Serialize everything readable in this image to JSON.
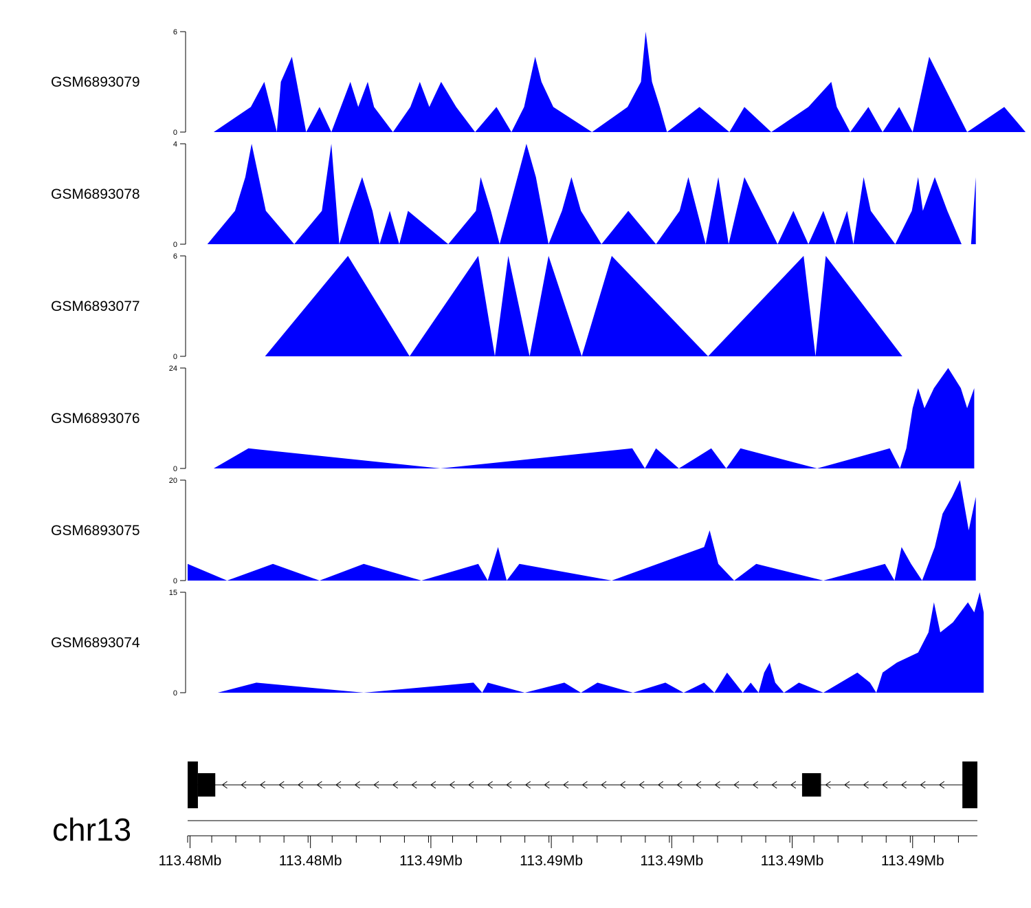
{
  "chart_data": {
    "type": "area",
    "fill_color": "#0000ff",
    "gene_color": "#000000",
    "chromosome": "chr13",
    "x_range": [
      0,
      1000
    ],
    "x_tick_labels": [
      "113.48Mb",
      "113.48Mb",
      "113.49Mb",
      "113.49Mb",
      "113.49Mb",
      "113.49Mb",
      "113.49Mb"
    ],
    "tracks": [
      {
        "name": "GSM6893079",
        "ylim": [
          0,
          6
        ],
        "y_tick_labels": [
          "0",
          "6"
        ],
        "points": [
          [
            33,
            0
          ],
          [
            80,
            1.5
          ],
          [
            97,
            3
          ],
          [
            113,
            0
          ],
          [
            118,
            3
          ],
          [
            132,
            4.5
          ],
          [
            150,
            0
          ],
          [
            167,
            1.5
          ],
          [
            182,
            0
          ],
          [
            206,
            3
          ],
          [
            216,
            1.5
          ],
          [
            228,
            3
          ],
          [
            236,
            1.5
          ],
          [
            260,
            0
          ],
          [
            282,
            1.5
          ],
          [
            294,
            3
          ],
          [
            306,
            1.5
          ],
          [
            321,
            3
          ],
          [
            340,
            1.5
          ],
          [
            364,
            0
          ],
          [
            391,
            1.5
          ],
          [
            410,
            0
          ],
          [
            426,
            1.5
          ],
          [
            440,
            4.5
          ],
          [
            448,
            3
          ],
          [
            463,
            1.5
          ],
          [
            512,
            0
          ],
          [
            557,
            1.5
          ],
          [
            574,
            3
          ],
          [
            580,
            6
          ],
          [
            588,
            3
          ],
          [
            598,
            1.5
          ],
          [
            607,
            0
          ],
          [
            648,
            1.5
          ],
          [
            686,
            0
          ],
          [
            705,
            1.5
          ],
          [
            739,
            0
          ],
          [
            786,
            1.5
          ],
          [
            815,
            3
          ],
          [
            822,
            1.5
          ],
          [
            839,
            0
          ],
          [
            862,
            1.5
          ],
          [
            880,
            0
          ],
          [
            901,
            1.5
          ],
          [
            918,
            0
          ],
          [
            939,
            4.5
          ],
          [
            987,
            0
          ],
          [
            1034,
            1.5
          ],
          [
            1061,
            0
          ]
        ]
      },
      {
        "name": "GSM6893078",
        "ylim": [
          0,
          4
        ],
        "y_tick_labels": [
          "0",
          "4"
        ],
        "points": [
          [
            25,
            0
          ],
          [
            60,
            1.33
          ],
          [
            73,
            2.67
          ],
          [
            81,
            4
          ],
          [
            99,
            1.33
          ],
          [
            135,
            0
          ],
          [
            170,
            1.33
          ],
          [
            182,
            4
          ],
          [
            192,
            0
          ],
          [
            206,
            1.33
          ],
          [
            221,
            2.67
          ],
          [
            234,
            1.33
          ],
          [
            243,
            0
          ],
          [
            256,
            1.33
          ],
          [
            268,
            0
          ],
          [
            279,
            1.33
          ],
          [
            330,
            0
          ],
          [
            365,
            1.33
          ],
          [
            371,
            2.67
          ],
          [
            384,
            1.33
          ],
          [
            395,
            0
          ],
          [
            429,
            4
          ],
          [
            441,
            2.67
          ],
          [
            457,
            0
          ],
          [
            474,
            1.33
          ],
          [
            486,
            2.67
          ],
          [
            498,
            1.33
          ],
          [
            524,
            0
          ],
          [
            558,
            1.33
          ],
          [
            593,
            0
          ],
          [
            623,
            1.33
          ],
          [
            634,
            2.67
          ],
          [
            656,
            0
          ],
          [
            672,
            2.67
          ],
          [
            685,
            0
          ],
          [
            705,
            2.67
          ],
          [
            747,
            0
          ],
          [
            767,
            1.33
          ],
          [
            786,
            0
          ],
          [
            805,
            1.33
          ],
          [
            820,
            0
          ],
          [
            835,
            1.33
          ],
          [
            843,
            0
          ],
          [
            856,
            2.67
          ],
          [
            865,
            1.33
          ],
          [
            896,
            0
          ],
          [
            917,
            1.33
          ],
          [
            925,
            2.67
          ],
          [
            931,
            1.33
          ],
          [
            946,
            2.67
          ],
          [
            962,
            1.33
          ],
          [
            980,
            0
          ],
          [
            992,
            0
          ],
          [
            998,
            2.67
          ]
        ]
      },
      {
        "name": "GSM6893077",
        "ylim": [
          0,
          6
        ],
        "y_tick_labels": [
          "0",
          "6"
        ],
        "points": [
          [
            98,
            0
          ],
          [
            203,
            6
          ],
          [
            281,
            0
          ],
          [
            368,
            6
          ],
          [
            389,
            0
          ],
          [
            406,
            6
          ],
          [
            433,
            0
          ],
          [
            457,
            6
          ],
          [
            499,
            0
          ],
          [
            537,
            6
          ],
          [
            659,
            0
          ],
          [
            780,
            6
          ],
          [
            795,
            0
          ],
          [
            808,
            6
          ],
          [
            905,
            0
          ]
        ]
      },
      {
        "name": "GSM6893076",
        "ylim": [
          0,
          24
        ],
        "y_tick_labels": [
          "0",
          "24"
        ],
        "points": [
          [
            33,
            0
          ],
          [
            77,
            4.8
          ],
          [
            320,
            0
          ],
          [
            563,
            4.8
          ],
          [
            579,
            0
          ],
          [
            593,
            4.8
          ],
          [
            622,
            0
          ],
          [
            663,
            4.8
          ],
          [
            682,
            0
          ],
          [
            700,
            4.8
          ],
          [
            797,
            0
          ],
          [
            889,
            4.8
          ],
          [
            902,
            0
          ],
          [
            910,
            4.8
          ],
          [
            918,
            14.4
          ],
          [
            925,
            19.2
          ],
          [
            933,
            14.4
          ],
          [
            945,
            19.2
          ],
          [
            963,
            24
          ],
          [
            979,
            19.2
          ],
          [
            987,
            14.4
          ],
          [
            996,
            19.2
          ]
        ]
      },
      {
        "name": "GSM6893075",
        "ylim": [
          0,
          20
        ],
        "y_tick_labels": [
          "0",
          "20"
        ],
        "points": [
          [
            0,
            3.33
          ],
          [
            50,
            0
          ],
          [
            108,
            3.33
          ],
          [
            167,
            0
          ],
          [
            223,
            3.33
          ],
          [
            296,
            0
          ],
          [
            368,
            3.33
          ],
          [
            380,
            0
          ],
          [
            393,
            6.67
          ],
          [
            404,
            0
          ],
          [
            420,
            3.33
          ],
          [
            537,
            0
          ],
          [
            654,
            6.67
          ],
          [
            661,
            10
          ],
          [
            672,
            3.33
          ],
          [
            692,
            0
          ],
          [
            720,
            3.33
          ],
          [
            805,
            0
          ],
          [
            883,
            3.33
          ],
          [
            895,
            0
          ],
          [
            904,
            6.67
          ],
          [
            916,
            3.33
          ],
          [
            930,
            0
          ],
          [
            946,
            6.67
          ],
          [
            956,
            13.33
          ],
          [
            968,
            16.67
          ],
          [
            978,
            20
          ],
          [
            989,
            10
          ],
          [
            998,
            16.67
          ]
        ]
      },
      {
        "name": "GSM6893074",
        "ylim": [
          0,
          15
        ],
        "y_tick_labels": [
          "0",
          "15"
        ],
        "points": [
          [
            38,
            0
          ],
          [
            87,
            1.5
          ],
          [
            223,
            0
          ],
          [
            362,
            1.5
          ],
          [
            373,
            0
          ],
          [
            380,
            1.5
          ],
          [
            427,
            0
          ],
          [
            477,
            1.5
          ],
          [
            498,
            0
          ],
          [
            519,
            1.5
          ],
          [
            564,
            0
          ],
          [
            605,
            1.5
          ],
          [
            628,
            0
          ],
          [
            654,
            1.5
          ],
          [
            667,
            0
          ],
          [
            683,
            3
          ],
          [
            703,
            0
          ],
          [
            713,
            1.5
          ],
          [
            723,
            0
          ],
          [
            730,
            3
          ],
          [
            737,
            4.5
          ],
          [
            744,
            1.5
          ],
          [
            755,
            0
          ],
          [
            774,
            1.5
          ],
          [
            805,
            0
          ],
          [
            848,
            3
          ],
          [
            864,
            1.5
          ],
          [
            872,
            0
          ],
          [
            880,
            3
          ],
          [
            898,
            4.5
          ],
          [
            925,
            6
          ],
          [
            938,
            9
          ],
          [
            945,
            13.5
          ],
          [
            953,
            9
          ],
          [
            969,
            10.5
          ],
          [
            988,
            13.5
          ],
          [
            996,
            12
          ],
          [
            1003,
            15
          ],
          [
            1008,
            12
          ]
        ]
      }
    ],
    "gene_model": {
      "strand": "minus",
      "exons": [
        [
          0,
          13
        ],
        [
          13,
          35
        ],
        [
          778,
          802
        ],
        [
          981,
          1000
        ]
      ],
      "tall_exons": [
        0,
        3
      ]
    }
  }
}
